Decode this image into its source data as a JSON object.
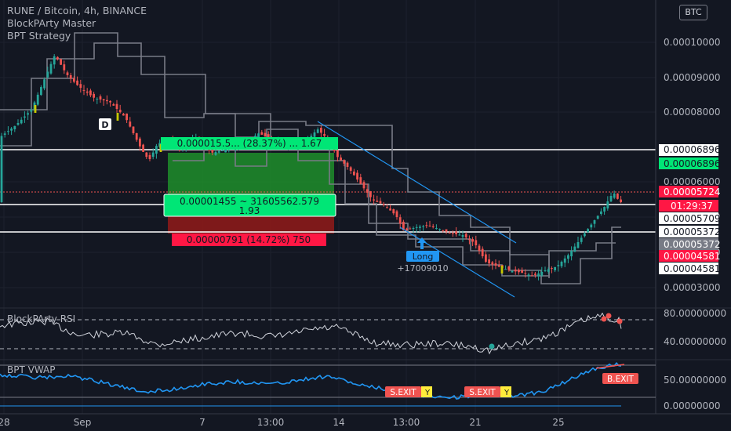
{
  "header": {
    "symbol_line": "RUNE / Bitcoin, 4h, BINANCE",
    "indicator_1": "BlockPArty Master",
    "indicator_2": "BPT Strategy",
    "currency_button": "BTC"
  },
  "colors": {
    "background": "#131722",
    "grid": "#1e222d",
    "candle_up": "#26a69a",
    "candle_down": "#ef5350",
    "channel": "#2196f3",
    "step_lines": "#787b86",
    "profit_zone": "#1e8e2a",
    "loss_zone": "#8b1a1a",
    "rsi_line": "#d1d4dc",
    "vwap_line": "#2196f3",
    "exit_label": "#ef5350",
    "long_label": "#2196f3"
  },
  "chart_data": [
    {
      "type": "candlestick",
      "title": "RUNE / Bitcoin, 4h, BINANCE",
      "x_ticks": [
        "28",
        "Sep",
        "7",
        "13:00",
        "14",
        "13:00",
        "21",
        "25"
      ],
      "y_ticks": [
        "0.00010000",
        "0.00009000",
        "0.00008000",
        "0.00006000",
        "0.00005000",
        "0.00004000",
        "0.00003000"
      ],
      "ylim": [
        2.55e-05,
        0.000114
      ],
      "grid": true,
      "horizontal_levels": [
        {
          "label": "0.00006896",
          "value": 6.896e-05
        },
        {
          "label": "0.00005709",
          "value": 5.709e-05
        },
        {
          "label": "0.00005372",
          "value": 5.372e-05
        }
      ],
      "price_labels": [
        {
          "label": "0.00006896",
          "kind": "take-profit"
        },
        {
          "label": "0.00005724",
          "kind": "last-price"
        },
        {
          "label": "01:29:37",
          "kind": "countdown"
        },
        {
          "label": "0.00005709",
          "kind": "level"
        },
        {
          "label": "0.00005372",
          "kind": "level"
        },
        {
          "label": "0.00005372",
          "kind": "entry"
        },
        {
          "label": "0.00004581",
          "kind": "stop"
        },
        {
          "label": "0.00004581",
          "kind": "level"
        }
      ],
      "position_tool": {
        "profit_text": "0.000015.5... (28.37%) ... 1.67",
        "middle_text_1": "0.00001455 ~ 31605562.579",
        "middle_text_2": "1.93",
        "loss_text": "0.00000791 (14.72%) 750"
      },
      "annotations": [
        {
          "label": "D"
        },
        {
          "label": "Long"
        },
        {
          "label": "+17009010"
        }
      ]
    },
    {
      "type": "line",
      "title": "BlockPArty RSI",
      "y_ticks": [
        "80.00000000",
        "40.00000000"
      ],
      "levels": [
        80,
        40
      ]
    },
    {
      "type": "line",
      "title": "BPT VWAP",
      "y_ticks": [
        "50.00000000",
        "0.00000000"
      ],
      "exit_labels": [
        "S.EXIT",
        "S.EXIT",
        "B.EXIT"
      ],
      "marker_letter": "Y"
    }
  ]
}
